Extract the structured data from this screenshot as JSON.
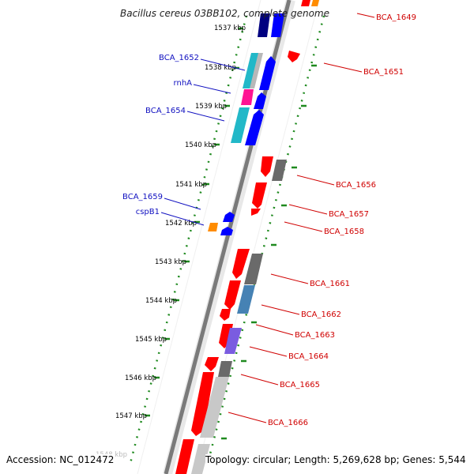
{
  "title": "Bacillus cereus 03BB102, complete genome",
  "footer": {
    "accession": "Accession: NC_012472",
    "summary": "Topology: circular; Length: 5,269,628 bp; Genes: 5,544"
  },
  "colors": {
    "backbone": "#7a7a7a",
    "tick": "#1f8a1f",
    "forward_label": "#1010c0",
    "reverse_label": "#d00000"
  },
  "ruler_labels": [
    "1537 kbp",
    "1538 kbp",
    "1539 kbp",
    "1540 kbp",
    "1541 kbp",
    "1542 kbp",
    "1543 kbp",
    "1544 kbp",
    "1545 kbp",
    "1546 kbp",
    "1547 kbp",
    "1548 kbp"
  ],
  "forward_labels": [
    "BCA_1652",
    "rnhA",
    "BCA_1654",
    "BCA_1659",
    "cspB1"
  ],
  "reverse_labels": [
    "BCA_1649",
    "BCA_1651",
    "BCA_1656",
    "BCA_1657",
    "BCA_1658",
    "BCA_1661",
    "BCA_1662",
    "BCA_1663",
    "BCA_1664",
    "BCA_1665",
    "BCA_1666"
  ]
}
